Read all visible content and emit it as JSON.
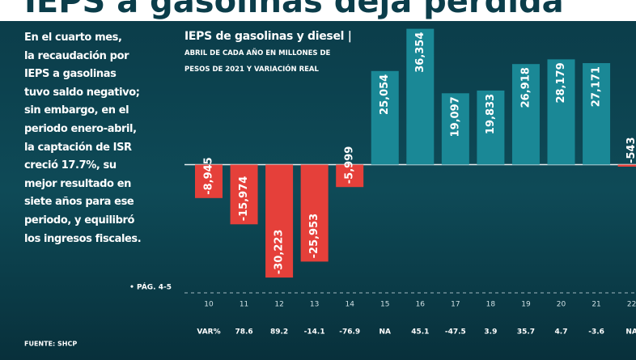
{
  "headline": "IEPS a gasolinas deja pérdida",
  "article": {
    "lines": [
      "En el cuarto mes,",
      "la recaudación por",
      "IEPS a gasolinas",
      "tuvo saldo negativo;",
      "sin embargo, en el",
      "periodo enero-abril,",
      "la captación de ISR",
      "creció 17.7%, su",
      "mejor resultado en",
      "siete años para ese",
      "periodo, y equilibró",
      "los ingresos fiscales."
    ],
    "reference": "• PÁG. 4-5"
  },
  "source": "FUENTE: SHCP",
  "chart_data": {
    "type": "bar",
    "title": "IEPS de gasolinas y diesel |",
    "subtitle": "ABRIL DE CADA AÑO EN MILLONES DE PESOS DE 2021 Y VARIACIÓN REAL",
    "categories": [
      "10",
      "11",
      "12",
      "13",
      "14",
      "15",
      "16",
      "17",
      "18",
      "19",
      "20",
      "21",
      "22"
    ],
    "values": [
      -8945,
      -15974,
      -30223,
      -25953,
      -5999,
      25054,
      36354,
      19097,
      19833,
      26918,
      28179,
      27171,
      -543
    ],
    "value_labels": [
      "-8,945",
      "-15,974",
      "-30,223",
      "-25,953",
      "-5,999",
      "25,054",
      "36,354",
      "19,097",
      "19,833",
      "26,918",
      "28,179",
      "27,171",
      "-543"
    ],
    "positive_color": "#1a8896",
    "negative_color": "#e5403a",
    "ylim": [
      -38000,
      38000
    ],
    "variation": {
      "label": "VAR%",
      "values": [
        null,
        "78.6",
        "89.2",
        "-14.1",
        "-76.9",
        "NA",
        "45.1",
        "-47.5",
        "3.9",
        "35.7",
        "4.7",
        "-3.6",
        "NA"
      ]
    }
  }
}
